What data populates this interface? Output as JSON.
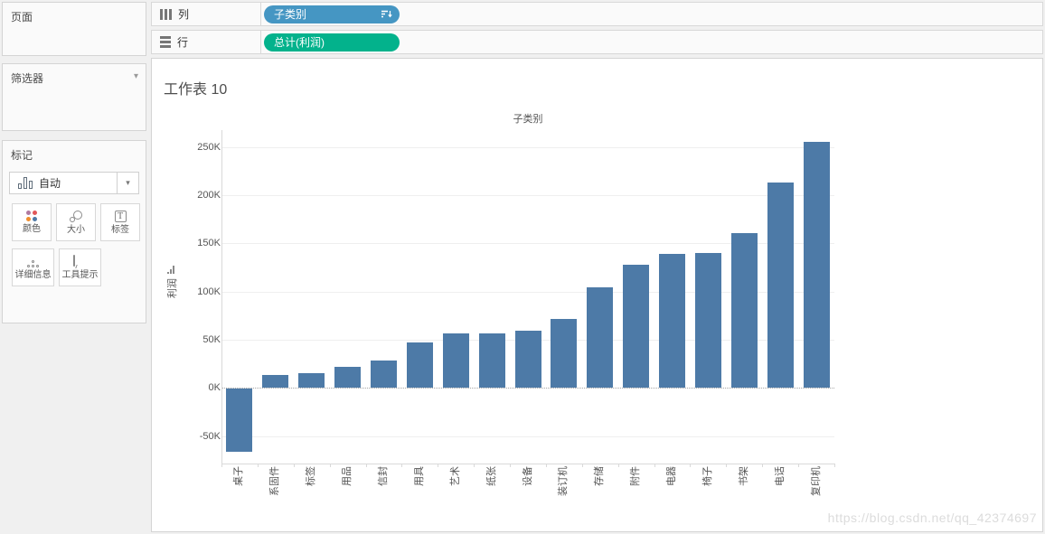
{
  "panels": {
    "pages": {
      "title": "页面"
    },
    "filters": {
      "title": "筛选器"
    },
    "marks": {
      "title": "标记",
      "mark_type": "自动",
      "buttons": [
        {
          "label": "颜色"
        },
        {
          "label": "大小"
        },
        {
          "label": "标签"
        },
        {
          "label": "详细信息"
        },
        {
          "label": "工具提示"
        }
      ]
    }
  },
  "shelves": {
    "columns": {
      "label": "列",
      "pill": "子类别"
    },
    "rows": {
      "label": "行",
      "pill": "总计(利润)"
    }
  },
  "worksheet": {
    "title": "工作表 10",
    "watermark": "https://blog.csdn.net/qq_42374697"
  },
  "chart_data": {
    "type": "bar",
    "title": "子类别",
    "ylabel": "利润",
    "categories": [
      "桌子",
      "系固件",
      "标签",
      "用品",
      "信封",
      "用具",
      "艺术",
      "纸张",
      "设备",
      "装订机",
      "存储",
      "附件",
      "电器",
      "椅子",
      "书架",
      "电话",
      "复印机"
    ],
    "values_thousands": [
      -65,
      13,
      15,
      22,
      28,
      47,
      57,
      57,
      59,
      72,
      104,
      128,
      139,
      140,
      161,
      213,
      255
    ],
    "yticks_thousands": [
      -50,
      0,
      50,
      100,
      150,
      200,
      250
    ],
    "ytick_labels": [
      "-50K",
      "0K",
      "50K",
      "100K",
      "150K",
      "200K",
      "250K"
    ],
    "ylim_thousands": [
      -79,
      268
    ],
    "grid": true,
    "zero_line": "dotted",
    "legend": "none",
    "bar_color": "#4d7aa7"
  },
  "colors": {
    "dimension_pill": "#4596c3",
    "measure_pill": "#03b28c",
    "bar": "#4d7aa7",
    "color_icon_dots": [
      "#b07aa1",
      "#e15759",
      "#f28e2b",
      "#4e79a7"
    ]
  }
}
